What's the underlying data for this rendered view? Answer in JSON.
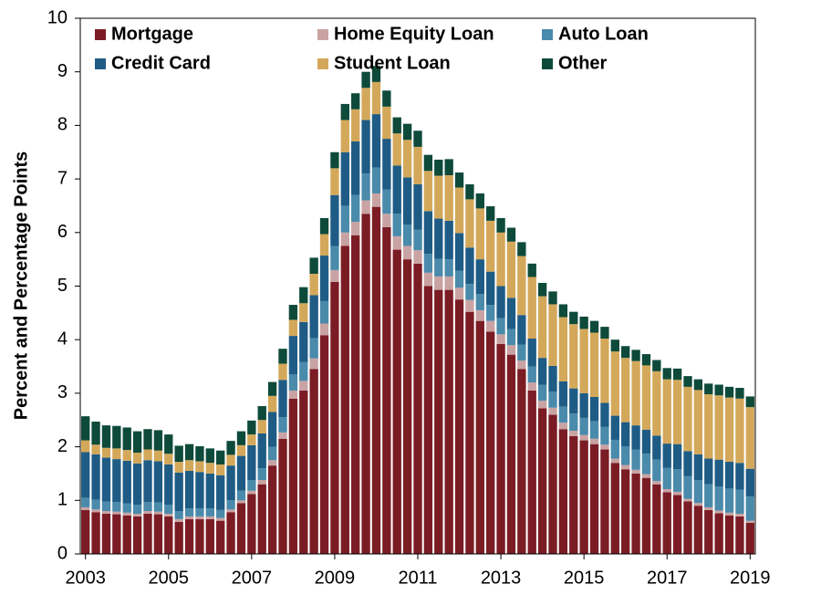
{
  "chart_data": {
    "type": "stacked_bar",
    "y_label": "Percent and Percentage Points",
    "categories": [
      "2003",
      null,
      null,
      null,
      null,
      null,
      null,
      null,
      "2005",
      null,
      null,
      null,
      null,
      null,
      null,
      null,
      "2007",
      null,
      null,
      null,
      null,
      null,
      null,
      null,
      "2009",
      null,
      null,
      null,
      null,
      null,
      null,
      null,
      "2011",
      null,
      null,
      null,
      null,
      null,
      null,
      null,
      "2013",
      null,
      null,
      null,
      null,
      null,
      null,
      null,
      "2015",
      null,
      null,
      null,
      null,
      null,
      null,
      null,
      "2017",
      null,
      null,
      null,
      null,
      null,
      null,
      null,
      "2019"
    ],
    "ylim": [
      0,
      10
    ],
    "yticks": [
      0,
      1,
      2,
      3,
      4,
      5,
      6,
      7,
      8,
      9,
      10
    ],
    "series": [
      {
        "name": "Mortgage",
        "color": "#7b1c24",
        "values": [
          0.82,
          0.78,
          0.75,
          0.74,
          0.72,
          0.7,
          0.75,
          0.74,
          0.7,
          0.6,
          0.65,
          0.65,
          0.65,
          0.62,
          0.78,
          0.95,
          1.12,
          1.3,
          1.65,
          2.15,
          2.9,
          3.05,
          3.45,
          4.08,
          5.08,
          5.75,
          5.95,
          6.35,
          6.48,
          6.1,
          5.68,
          5.5,
          5.42,
          5.0,
          4.93,
          4.93,
          4.75,
          4.52,
          4.35,
          4.15,
          3.92,
          3.72,
          3.45,
          3.05,
          2.72,
          2.6,
          2.33,
          2.2,
          2.12,
          2.05,
          1.95,
          1.7,
          1.58,
          1.5,
          1.42,
          1.3,
          1.15,
          1.1,
          0.98,
          0.9,
          0.82,
          0.76,
          0.72,
          0.7,
          0.58
        ]
      },
      {
        "name": "Home Equity Loan",
        "color": "#c9a3a3",
        "values": [
          0.05,
          0.05,
          0.05,
          0.05,
          0.05,
          0.05,
          0.05,
          0.05,
          0.05,
          0.05,
          0.05,
          0.05,
          0.05,
          0.05,
          0.05,
          0.05,
          0.06,
          0.08,
          0.1,
          0.12,
          0.15,
          0.18,
          0.2,
          0.22,
          0.22,
          0.25,
          0.25,
          0.25,
          0.25,
          0.25,
          0.25,
          0.25,
          0.25,
          0.25,
          0.25,
          0.25,
          0.22,
          0.22,
          0.2,
          0.2,
          0.18,
          0.18,
          0.16,
          0.15,
          0.14,
          0.13,
          0.12,
          0.1,
          0.1,
          0.1,
          0.09,
          0.08,
          0.08,
          0.07,
          0.07,
          0.06,
          0.06,
          0.06,
          0.05,
          0.05,
          0.05,
          0.05,
          0.05,
          0.05,
          0.04
        ]
      },
      {
        "name": "Auto Loan",
        "color": "#4a8aab",
        "values": [
          0.18,
          0.18,
          0.18,
          0.18,
          0.17,
          0.17,
          0.17,
          0.17,
          0.17,
          0.15,
          0.15,
          0.15,
          0.15,
          0.15,
          0.17,
          0.18,
          0.2,
          0.22,
          0.25,
          0.28,
          0.3,
          0.35,
          0.38,
          0.42,
          0.45,
          0.5,
          0.5,
          0.5,
          0.48,
          0.45,
          0.42,
          0.4,
          0.38,
          0.35,
          0.33,
          0.32,
          0.32,
          0.3,
          0.3,
          0.3,
          0.3,
          0.3,
          0.3,
          0.3,
          0.3,
          0.3,
          0.3,
          0.32,
          0.32,
          0.33,
          0.33,
          0.35,
          0.35,
          0.38,
          0.38,
          0.4,
          0.4,
          0.42,
          0.42,
          0.43,
          0.43,
          0.45,
          0.45,
          0.45,
          0.45
        ]
      },
      {
        "name": "Credit Card",
        "color": "#1f5c85",
        "values": [
          0.85,
          0.85,
          0.82,
          0.8,
          0.8,
          0.77,
          0.78,
          0.77,
          0.75,
          0.72,
          0.7,
          0.68,
          0.65,
          0.65,
          0.65,
          0.65,
          0.65,
          0.65,
          0.65,
          0.7,
          0.72,
          0.75,
          0.8,
          0.85,
          0.95,
          1.0,
          1.0,
          1.0,
          1.0,
          0.95,
          0.9,
          0.88,
          0.85,
          0.8,
          0.75,
          0.72,
          0.7,
          0.68,
          0.65,
          0.62,
          0.6,
          0.58,
          0.55,
          0.52,
          0.5,
          0.48,
          0.47,
          0.47,
          0.46,
          0.45,
          0.45,
          0.45,
          0.45,
          0.45,
          0.45,
          0.45,
          0.45,
          0.47,
          0.47,
          0.48,
          0.48,
          0.5,
          0.5,
          0.5,
          0.52
        ]
      },
      {
        "name": "Student Loan",
        "color": "#d4a85a",
        "values": [
          0.22,
          0.18,
          0.18,
          0.2,
          0.2,
          0.2,
          0.2,
          0.2,
          0.2,
          0.2,
          0.2,
          0.2,
          0.2,
          0.2,
          0.2,
          0.2,
          0.2,
          0.25,
          0.3,
          0.3,
          0.3,
          0.35,
          0.4,
          0.4,
          0.5,
          0.6,
          0.6,
          0.6,
          0.6,
          0.6,
          0.6,
          0.7,
          0.7,
          0.75,
          0.8,
          0.85,
          0.85,
          0.9,
          0.95,
          0.95,
          1.0,
          1.05,
          1.1,
          1.15,
          1.15,
          1.15,
          1.2,
          1.2,
          1.2,
          1.2,
          1.2,
          1.2,
          1.2,
          1.2,
          1.2,
          1.2,
          1.2,
          1.2,
          1.2,
          1.2,
          1.2,
          1.2,
          1.2,
          1.2,
          1.15
        ]
      },
      {
        "name": "Other",
        "color": "#0e4a3a",
        "values": [
          0.45,
          0.43,
          0.42,
          0.42,
          0.42,
          0.4,
          0.38,
          0.38,
          0.36,
          0.3,
          0.3,
          0.28,
          0.27,
          0.26,
          0.26,
          0.26,
          0.26,
          0.26,
          0.26,
          0.28,
          0.28,
          0.3,
          0.3,
          0.3,
          0.3,
          0.3,
          0.3,
          0.3,
          0.3,
          0.3,
          0.3,
          0.3,
          0.3,
          0.3,
          0.3,
          0.3,
          0.28,
          0.28,
          0.28,
          0.27,
          0.27,
          0.26,
          0.26,
          0.25,
          0.25,
          0.24,
          0.24,
          0.23,
          0.23,
          0.22,
          0.22,
          0.22,
          0.22,
          0.21,
          0.21,
          0.21,
          0.21,
          0.21,
          0.2,
          0.2,
          0.2,
          0.2,
          0.2,
          0.2,
          0.2
        ]
      }
    ]
  }
}
